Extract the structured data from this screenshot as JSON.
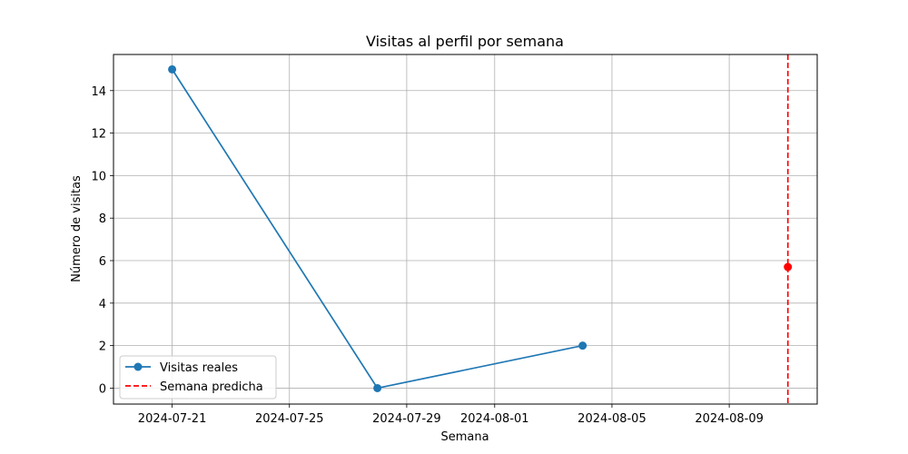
{
  "chart_data": {
    "type": "line",
    "title": "Visitas al perfil por semana",
    "xlabel": "Semana",
    "ylabel": "Número de visitas",
    "x_axis_type": "date",
    "xlim": [
      "2024-07-19",
      "2024-08-12"
    ],
    "ylim": [
      -0.75,
      15.7
    ],
    "x_ticks": [
      "2024-07-21",
      "2024-07-25",
      "2024-07-29",
      "2024-08-01",
      "2024-08-05",
      "2024-08-09"
    ],
    "y_ticks": [
      0,
      2,
      4,
      6,
      8,
      10,
      12,
      14
    ],
    "grid": true,
    "legend_position": "lower-left",
    "series": [
      {
        "name": "Visitas reales",
        "color": "#1f77b4",
        "marker": "circle",
        "line_style": "solid",
        "points": [
          {
            "x": "2024-07-21",
            "y": 15
          },
          {
            "x": "2024-07-28",
            "y": 0
          },
          {
            "x": "2024-08-04",
            "y": 2
          }
        ]
      },
      {
        "name": "Semana predicha",
        "color": "#ff0000",
        "line_style": "dashed",
        "vertical_line_x": "2024-08-11",
        "points": [
          {
            "x": "2024-08-11",
            "y": 5.7
          }
        ]
      }
    ]
  }
}
